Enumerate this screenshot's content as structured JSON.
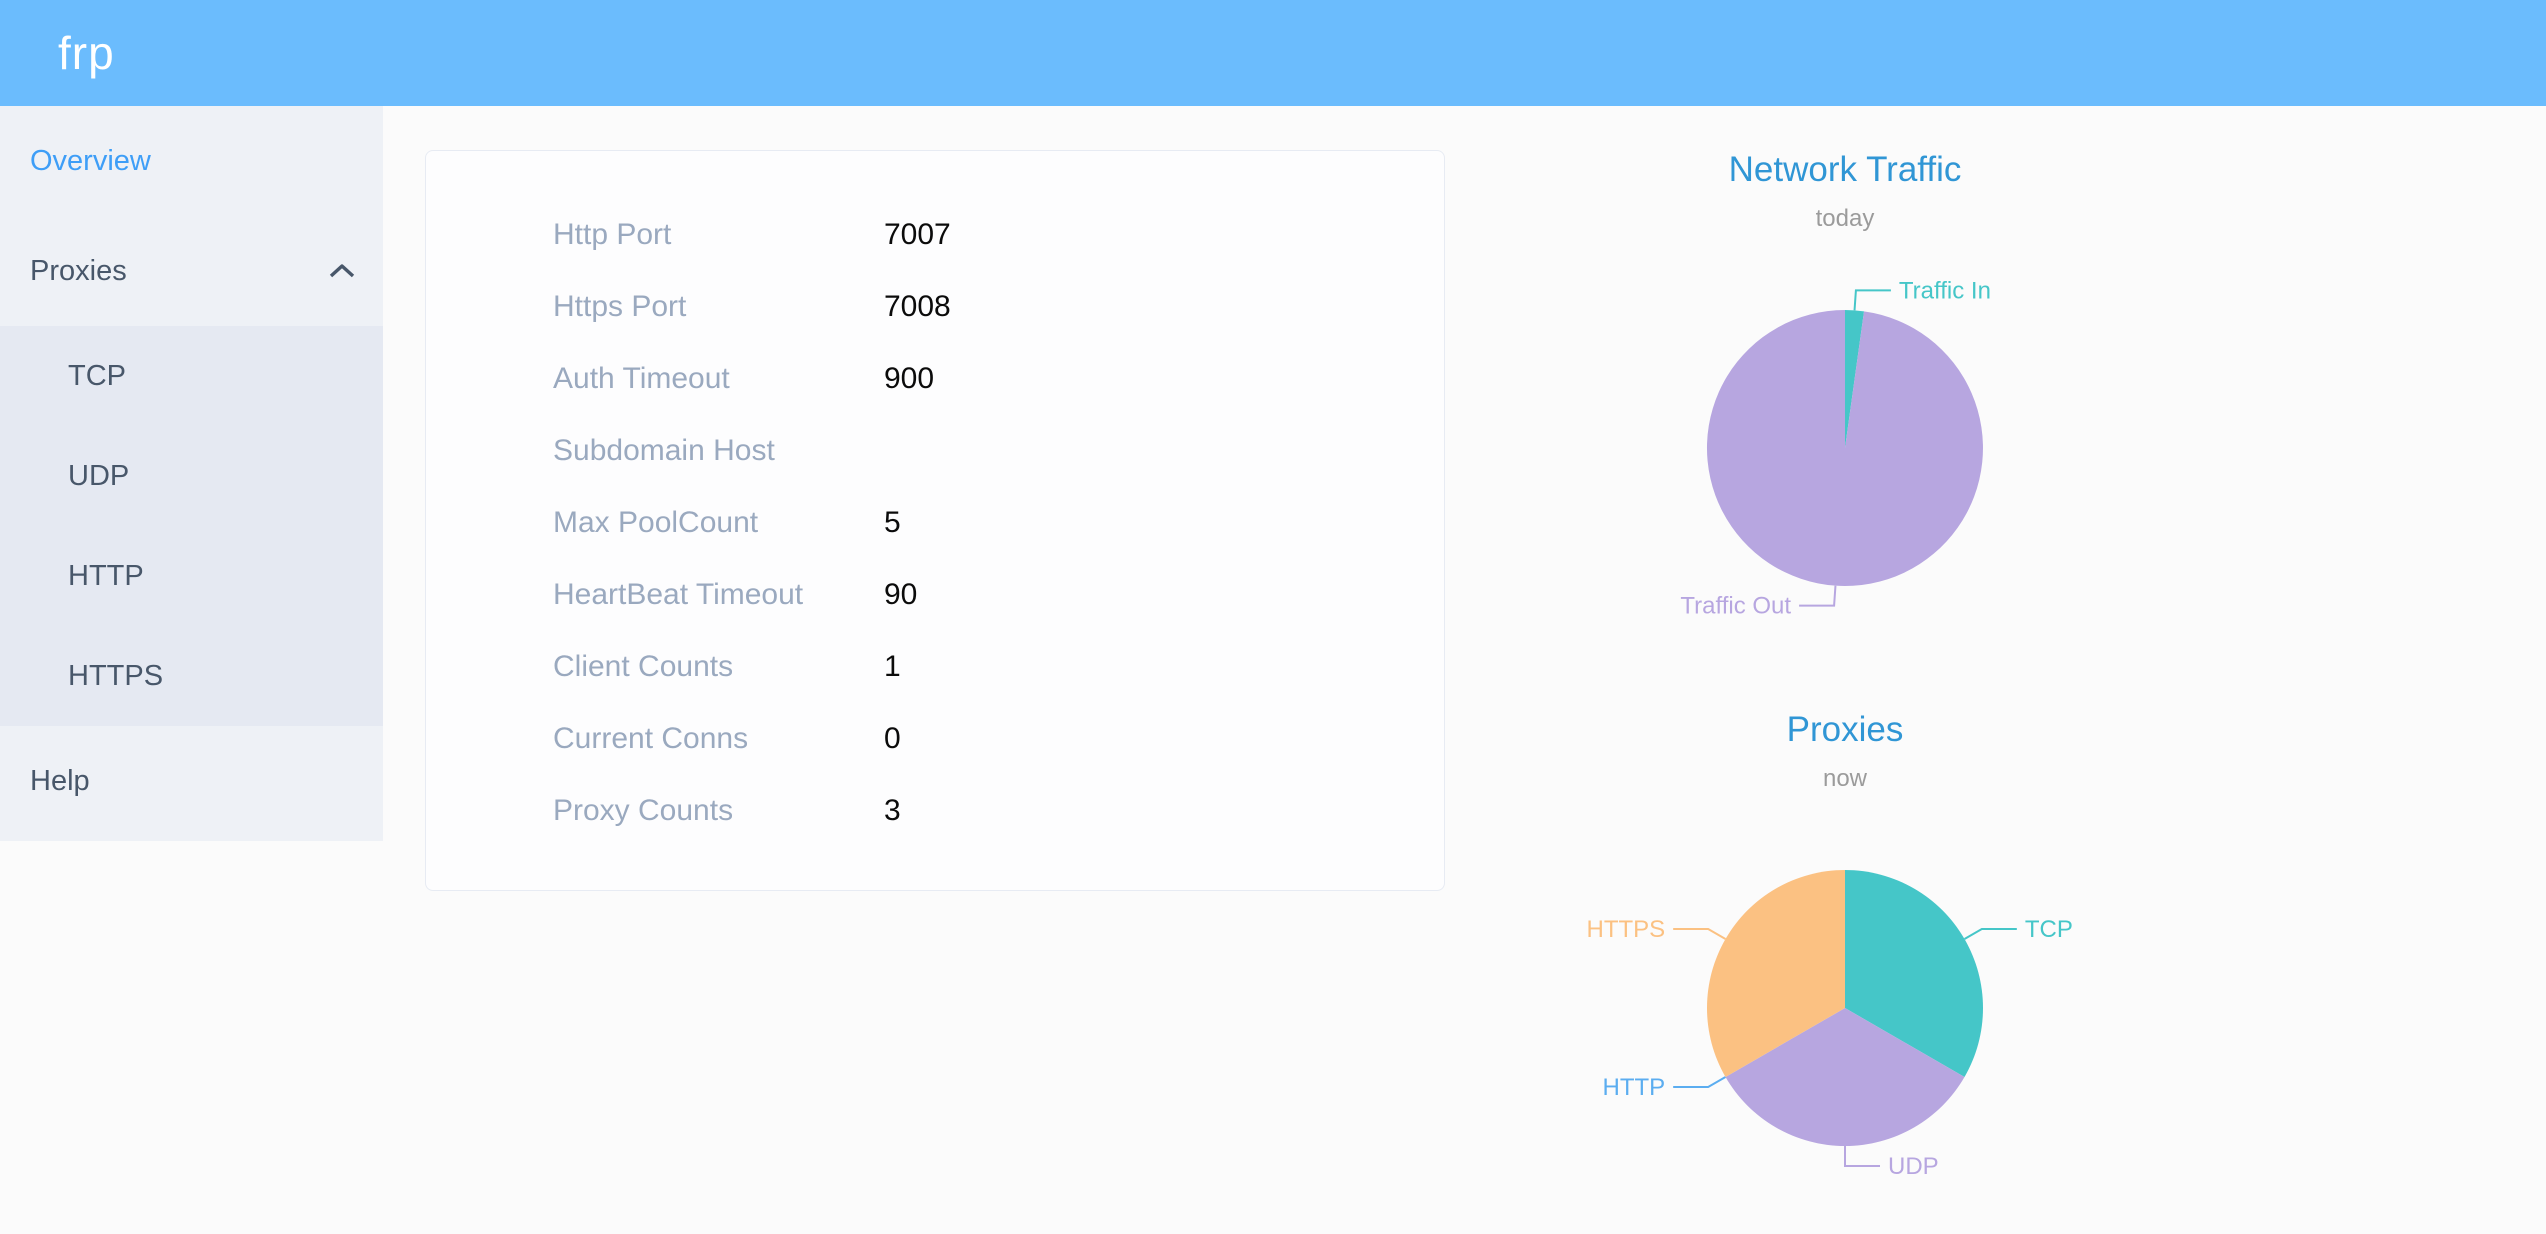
{
  "header": {
    "logo": "frp"
  },
  "sidebar": {
    "items": [
      {
        "label": "Overview",
        "active": true
      },
      {
        "label": "Proxies",
        "expanded": true,
        "children": [
          "TCP",
          "UDP",
          "HTTP",
          "HTTPS"
        ]
      },
      {
        "label": "Help",
        "active": false
      }
    ]
  },
  "overview_panel": {
    "rows": [
      {
        "label": "Http Port",
        "value": "7007"
      },
      {
        "label": "Https Port",
        "value": "7008"
      },
      {
        "label": "Auth Timeout",
        "value": "900"
      },
      {
        "label": "Subdomain Host",
        "value": ""
      },
      {
        "label": "Max PoolCount",
        "value": "5"
      },
      {
        "label": "HeartBeat Timeout",
        "value": "90"
      },
      {
        "label": "Client Counts",
        "value": "1"
      },
      {
        "label": "Current Conns",
        "value": "0"
      },
      {
        "label": "Proxy Counts",
        "value": "3"
      }
    ]
  },
  "chart_data": [
    {
      "type": "pie",
      "title": "Network Traffic",
      "subtitle": "today",
      "legend_position": "none",
      "labels": "outside",
      "slices": [
        {
          "label": "Traffic In",
          "value": 2.2,
          "color": "#45c6c8"
        },
        {
          "label": "Traffic Out",
          "value": 97.8,
          "color": "#b7a6e0"
        }
      ]
    },
    {
      "type": "pie",
      "title": "Proxies",
      "subtitle": "now",
      "legend_position": "none",
      "labels": "outside",
      "slices": [
        {
          "label": "TCP",
          "value": 1,
          "color": "#45c6c8"
        },
        {
          "label": "UDP",
          "value": 1,
          "color": "#b7a6e0"
        },
        {
          "label": "HTTP",
          "value": 0,
          "color": "#5badf0"
        },
        {
          "label": "HTTPS",
          "value": 1,
          "color": "#fbc182"
        }
      ]
    }
  ],
  "colors": {
    "header_bg": "#6bbcfd",
    "sidebar_bg": "#eef1f6",
    "submenu_bg": "#e5e9f2",
    "active_link": "#3e9ef7",
    "sidebar_text": "#48576a",
    "chart_title": "#3096d5",
    "info_label": "#9aa9bf"
  }
}
